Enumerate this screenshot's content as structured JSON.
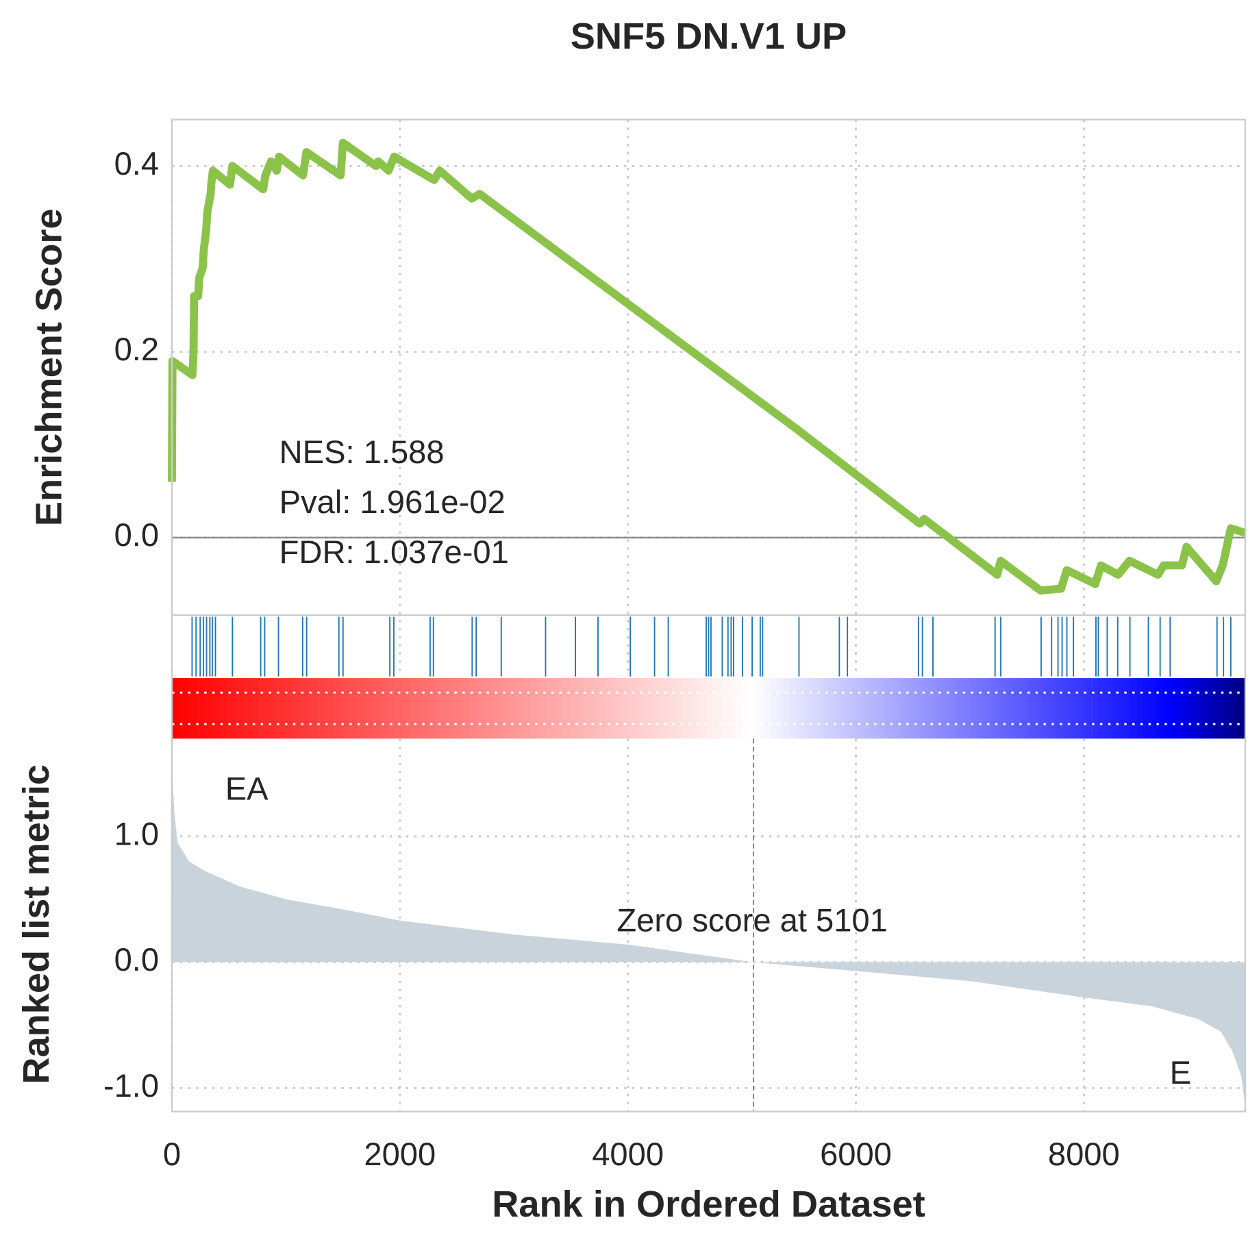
{
  "chart_data": [
    {
      "type": "line",
      "title": "SNF5 DN.V1 UP",
      "ylabel": "Enrichment Score",
      "x": [
        0,
        5,
        180,
        190,
        195,
        230,
        240,
        270,
        280,
        300,
        310,
        340,
        345,
        360,
        510,
        530,
        800,
        820,
        870,
        920,
        940,
        1150,
        1180,
        1480,
        1500,
        1790,
        1810,
        1900,
        1950,
        2300,
        2350,
        2630,
        2700,
        5500,
        6560,
        6600,
        7240,
        7270,
        7620,
        7800,
        7850,
        8100,
        8150,
        8300,
        8400,
        8650,
        8700,
        8860,
        8900,
        9161,
        9218,
        9289,
        9416
      ],
      "values": [
        0.06,
        0.19,
        0.175,
        0.2,
        0.26,
        0.26,
        0.28,
        0.29,
        0.31,
        0.33,
        0.35,
        0.37,
        0.38,
        0.395,
        0.38,
        0.4,
        0.375,
        0.39,
        0.405,
        0.395,
        0.41,
        0.39,
        0.415,
        0.39,
        0.425,
        0.4,
        0.405,
        0.395,
        0.41,
        0.385,
        0.395,
        0.365,
        0.37,
        0.115,
        0.015,
        0.02,
        -0.04,
        -0.025,
        -0.057,
        -0.055,
        -0.035,
        -0.05,
        -0.03,
        -0.04,
        -0.025,
        -0.04,
        -0.03,
        -0.03,
        -0.01,
        -0.047,
        -0.03,
        0.01,
        0.005
      ],
      "color": "#8bc34a",
      "hits": [
        177,
        212,
        248,
        276,
        304,
        333,
        354,
        382,
        531,
        779,
        814,
        935,
        1147,
        1182,
        1465,
        1501,
        1912,
        1947,
        2265,
        2294,
        2634,
        2669,
        2889,
        3278,
        3540,
        3738,
        4021,
        4234,
        4354,
        4687,
        4708,
        4729,
        4828,
        4878,
        4906,
        4927,
        5005,
        5090,
        5161,
        5182,
        5501,
        5855,
        5926,
        6549,
        6584,
        6676,
        7221,
        7271,
        7625,
        7717,
        7773,
        7809,
        7851,
        7908,
        8106,
        8127,
        8205,
        8297,
        8404,
        8566,
        8669,
        8757,
        9168,
        9225,
        9289
      ],
      "hit_color": "#1f77b4",
      "annotations": [
        "NES: 1.588",
        "Pval: 1.961e-02",
        "FDR: 1.037e-01"
      ],
      "xlim": [
        0,
        9416
      ],
      "xticks": [
        0,
        2000,
        4000,
        6000,
        8000
      ],
      "ylim": [
        -0.0835,
        0.45
      ],
      "yticks": [
        {
          "value": 0,
          "label": "0.0"
        },
        {
          "value": 0.2,
          "label": "0.2"
        },
        {
          "value": 0.4,
          "label": "0.4"
        }
      ],
      "grid": true
    },
    {
      "type": "area",
      "ylabel": "Ranked list metric",
      "xlabel": "Rank in Ordered Dataset",
      "x": [
        0,
        20,
        50,
        150,
        300,
        600,
        1000,
        1500,
        2000,
        3000,
        4000,
        5101,
        6000,
        7000,
        8000,
        8600,
        9000,
        9200,
        9300,
        9380,
        9416
      ],
      "values": [
        1.6,
        1.2,
        0.95,
        0.8,
        0.72,
        0.6,
        0.5,
        0.42,
        0.33,
        0.22,
        0.14,
        0,
        -0.07,
        -0.15,
        -0.28,
        -0.35,
        -0.45,
        -0.55,
        -0.7,
        -0.9,
        -1.15
      ],
      "color": "#c9d3dc",
      "annotations": [
        {
          "text": "EA",
          "color": "#ff0000"
        },
        {
          "text": "E",
          "color": "#0000ff"
        },
        {
          "text": "Zero score at 5101",
          "color": "#262626"
        }
      ],
      "zero_rank": 5101,
      "colormap": [
        [
          0,
          "#ff0000"
        ],
        [
          0.54,
          "#ffffff"
        ],
        [
          0.93,
          "#0000ff"
        ],
        [
          1,
          "#000080"
        ]
      ],
      "xlim": [
        0,
        9416
      ],
      "xticks": [
        0,
        2000,
        4000,
        6000,
        8000
      ],
      "ylim": [
        -1.186,
        1.776
      ],
      "yticks": [
        {
          "value": -1,
          "label": "-1.0"
        },
        {
          "value": 0,
          "label": "0.0"
        },
        {
          "value": 1,
          "label": "1.0"
        }
      ],
      "grid": true
    }
  ]
}
